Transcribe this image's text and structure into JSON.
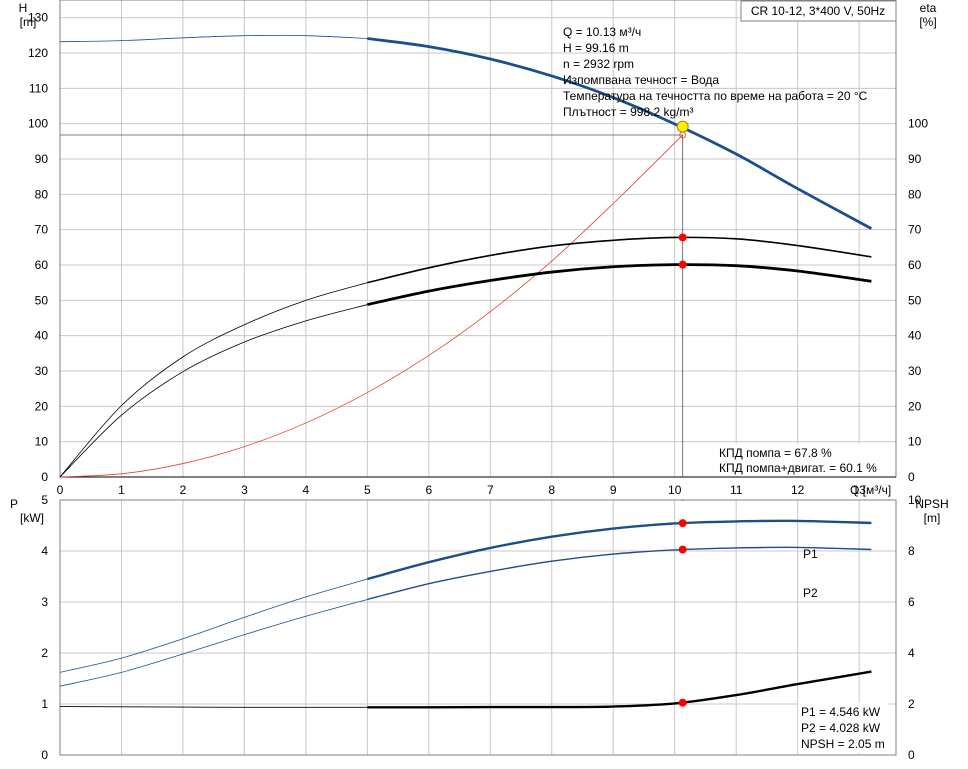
{
  "header": {
    "product": "CR 10-12, 3*400 V, 50Hz"
  },
  "info": {
    "q": "Q = 10.13 м³/ч",
    "h": "H = 99.16 m",
    "n": "n = 2932 rpm",
    "liquid": "Изпомпвана течност = Вода",
    "temperature": "Температура на течността по време на работа = 20 °C",
    "density": "Плътност = 998.2 kg/m³"
  },
  "top_results": {
    "eff_pump": "КПД помпа = 67.8 %",
    "eff_total": "КПД помпа+двигат. = 60.1 %"
  },
  "bottom_results": {
    "p1": "P1 = 4.546 kW",
    "p2": "P2 = 4.028 kW",
    "npsh": "NPSH = 2.05 m"
  },
  "colors": {
    "head": "#1a4f8a",
    "efficiency": "#000000",
    "system": "#e8402a",
    "power": "#1a4f8a",
    "npsh": "#000000",
    "marker": "#ff0000",
    "duty": "#ffee00"
  },
  "chart_data": [
    {
      "type": "line",
      "panel": "head-efficiency",
      "xlabel": "Q [м³/ч]",
      "ylabel_left": "H\n[m]",
      "ylabel_right": "eta\n[%]",
      "xlim": [
        0,
        13.6
      ],
      "x_ticks": [
        0,
        1,
        2,
        3,
        4,
        5,
        6,
        7,
        8,
        9,
        10,
        11,
        12,
        13
      ],
      "ylim_left": [
        0,
        135
      ],
      "y_ticks_left": [
        0,
        10,
        20,
        30,
        40,
        50,
        60,
        70,
        80,
        90,
        100,
        110,
        120,
        130
      ],
      "ylim_right": [
        0,
        135
      ],
      "y_ticks_right": [
        0,
        10,
        20,
        30,
        40,
        50,
        60,
        70,
        80,
        90,
        100
      ],
      "grid": true,
      "series": [
        {
          "key": "head",
          "axis": "left",
          "x": [
            0,
            1,
            2,
            3,
            4,
            5,
            6,
            7,
            8,
            9,
            10,
            11,
            12,
            13.2
          ],
          "y": [
            123.2,
            123.5,
            124.3,
            124.9,
            124.9,
            124.1,
            121.8,
            118.3,
            113.5,
            107.4,
            99.9,
            91.4,
            81.6,
            70.3
          ],
          "bold_from": 5.0
        },
        {
          "key": "eff-pump",
          "axis": "right",
          "x": [
            0,
            1,
            2,
            3,
            4,
            5,
            6,
            7,
            8,
            9,
            10,
            11,
            12,
            13.2
          ],
          "y": [
            0,
            20.2,
            34.0,
            43.1,
            50.0,
            55.0,
            59.2,
            62.7,
            65.4,
            67.0,
            67.8,
            67.4,
            65.5,
            62.3
          ],
          "bold_from": 5.0
        },
        {
          "key": "eff-total",
          "axis": "right",
          "x": [
            0,
            1,
            2,
            3,
            4,
            5,
            6,
            7,
            8,
            9,
            10,
            11,
            12,
            13.2
          ],
          "y": [
            0,
            17.5,
            29.8,
            38.2,
            44.2,
            48.8,
            52.6,
            55.6,
            58.0,
            59.5,
            60.1,
            59.8,
            58.3,
            55.4
          ],
          "bold_from": 5.0
        },
        {
          "key": "system",
          "axis": "left",
          "x": [
            0,
            1,
            2,
            3,
            4,
            5,
            6,
            7,
            8,
            9,
            10.13
          ],
          "y": [
            0,
            0.9,
            3.8,
            8.6,
            15.3,
            23.9,
            34.4,
            46.8,
            61.1,
            77.4,
            96.8
          ]
        }
      ],
      "duty_point": {
        "x": 10.13,
        "y": 99.16,
        "system_y": 96.8
      },
      "markers": [
        {
          "x": 10.13,
          "y": 67.8
        },
        {
          "x": 10.13,
          "y": 60.1
        }
      ]
    },
    {
      "type": "line",
      "panel": "power-npsh",
      "ylabel_left": "P\n[kW]",
      "ylabel_right": "NPSH\n[m]",
      "xlim": [
        0,
        13.6
      ],
      "ylim_left": [
        0,
        5.0
      ],
      "y_ticks_left": [
        0,
        1,
        2,
        3,
        4,
        5
      ],
      "ylim_right": [
        0,
        10.0
      ],
      "y_ticks_right": [
        0,
        2,
        4,
        6,
        8,
        10
      ],
      "grid": true,
      "series": [
        {
          "key": "p1",
          "name": "P1",
          "axis": "left",
          "x": [
            0,
            1,
            2,
            3,
            4,
            5,
            6,
            7,
            8,
            9,
            10,
            11,
            12,
            13.2
          ],
          "y": [
            1.62,
            1.9,
            2.28,
            2.7,
            3.1,
            3.45,
            3.78,
            4.06,
            4.28,
            4.44,
            4.54,
            4.58,
            4.59,
            4.55
          ],
          "bold_from": 5.0
        },
        {
          "key": "p2",
          "name": "P2",
          "axis": "left",
          "x": [
            0,
            1,
            2,
            3,
            4,
            5,
            6,
            7,
            8,
            9,
            10,
            11,
            12,
            13.2
          ],
          "y": [
            1.35,
            1.62,
            1.98,
            2.36,
            2.72,
            3.05,
            3.36,
            3.6,
            3.8,
            3.94,
            4.02,
            4.06,
            4.07,
            4.03
          ],
          "bold_from": 5.0
        },
        {
          "key": "npsh",
          "axis": "right",
          "x": [
            0,
            1,
            2,
            3,
            4,
            5,
            6,
            7,
            8,
            9,
            10,
            11,
            12,
            13.2
          ],
          "y": [
            1.9,
            1.89,
            1.88,
            1.87,
            1.87,
            1.87,
            1.87,
            1.88,
            1.88,
            1.9,
            2.02,
            2.35,
            2.78,
            3.27
          ],
          "bold_from": 5.0
        }
      ],
      "markers": [
        {
          "series": "p1",
          "x": 10.13,
          "y": 4.546
        },
        {
          "series": "p2",
          "x": 10.13,
          "y": 4.028
        },
        {
          "series": "npsh",
          "x": 10.13,
          "y": 2.05
        }
      ]
    }
  ]
}
